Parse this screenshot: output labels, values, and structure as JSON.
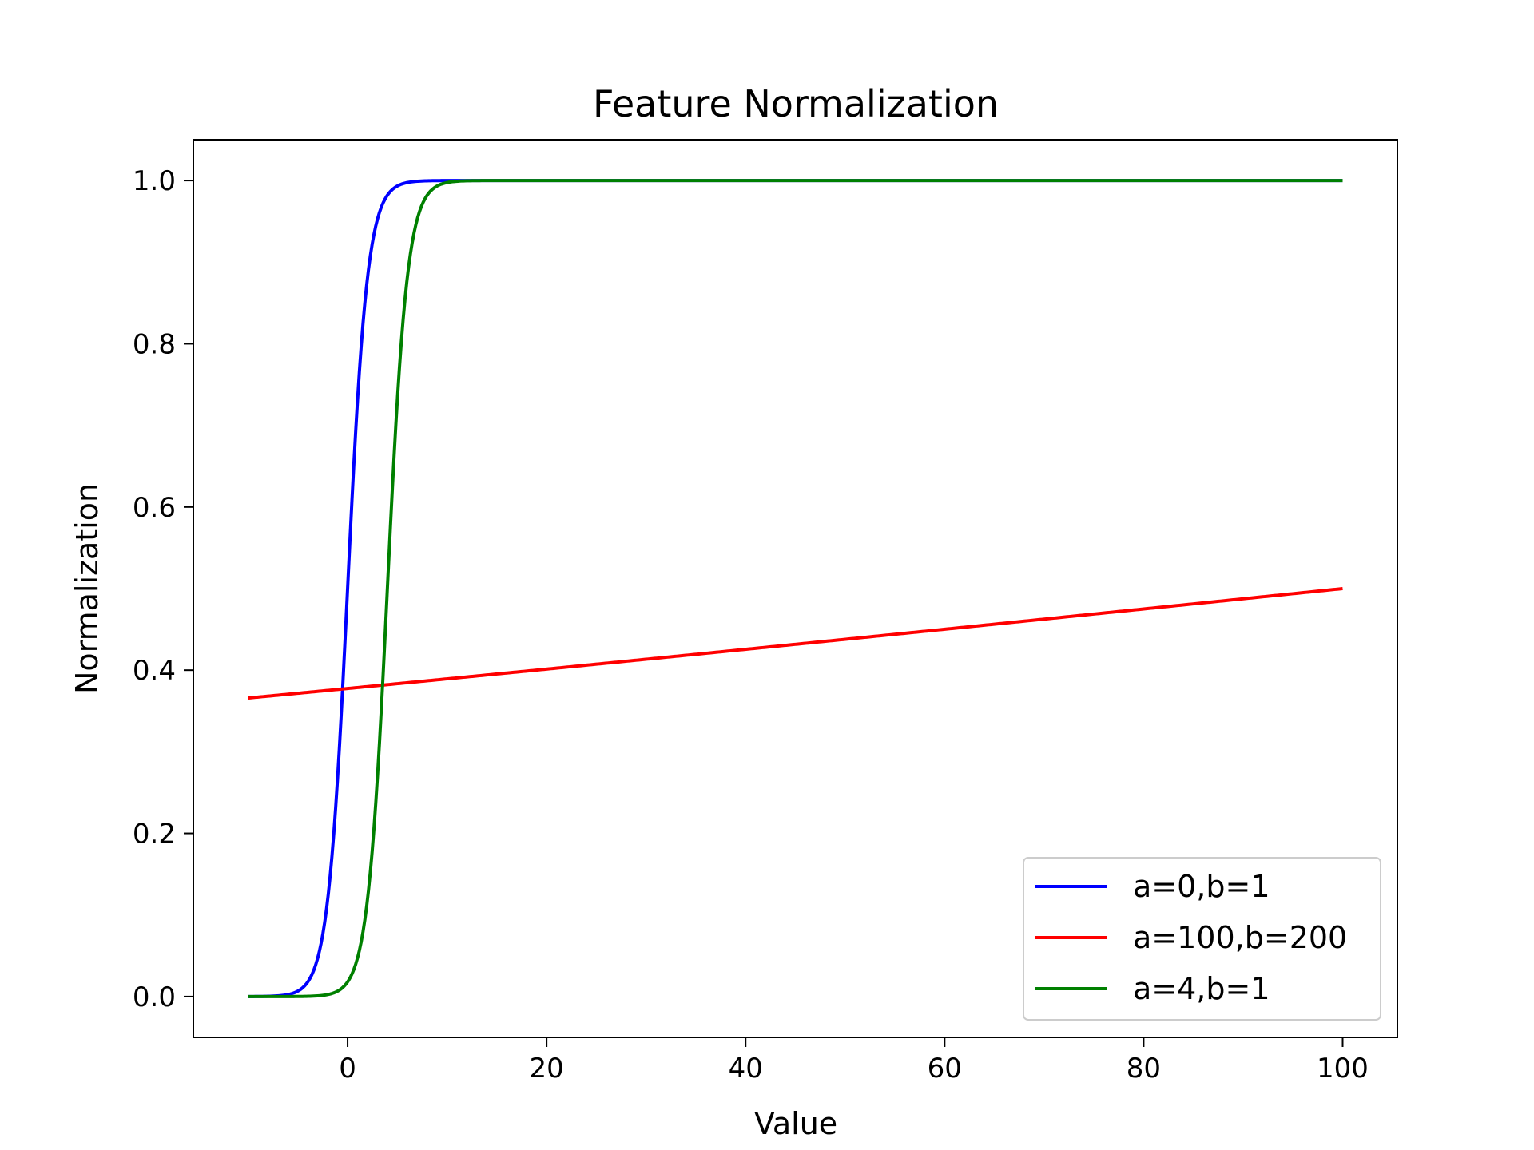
{
  "chart_data": {
    "type": "line",
    "title": "Feature Normalization",
    "xlabel": "Value",
    "ylabel": "Normalization",
    "xlim": [
      -15.5,
      105.5
    ],
    "ylim": [
      -0.05,
      1.05
    ],
    "xticks": [
      0,
      20,
      40,
      60,
      80,
      100
    ],
    "yticks": [
      0.0,
      0.2,
      0.4,
      0.6,
      0.8,
      1.0
    ],
    "x_range": [
      -10,
      100
    ],
    "grid": false,
    "legend_position": "lower-right",
    "series": [
      {
        "name": "a=0,b=1",
        "color": "#0000ff",
        "function": "sigmoid",
        "a": 0,
        "b": 1,
        "points": [
          [
            -10,
            0.0
          ],
          [
            -5,
            0.007
          ],
          [
            -2,
            0.12
          ],
          [
            0,
            0.5
          ],
          [
            2,
            0.88
          ],
          [
            5,
            0.993
          ],
          [
            10,
            1.0
          ],
          [
            100,
            1.0
          ]
        ]
      },
      {
        "name": "a=100,b=200",
        "color": "#ff0000",
        "function": "sigmoid",
        "a": 100,
        "b": 200,
        "points": [
          [
            -10,
            0.366
          ],
          [
            0,
            0.378
          ],
          [
            20,
            0.401
          ],
          [
            40,
            0.426
          ],
          [
            60,
            0.45
          ],
          [
            80,
            0.475
          ],
          [
            100,
            0.5
          ]
        ]
      },
      {
        "name": "a=4,b=1",
        "color": "#008000",
        "function": "sigmoid",
        "a": 4,
        "b": 1,
        "points": [
          [
            -10,
            0.0
          ],
          [
            0,
            0.018
          ],
          [
            2,
            0.12
          ],
          [
            4,
            0.5
          ],
          [
            6,
            0.88
          ],
          [
            9,
            0.993
          ],
          [
            15,
            1.0
          ],
          [
            100,
            1.0
          ]
        ]
      }
    ]
  }
}
